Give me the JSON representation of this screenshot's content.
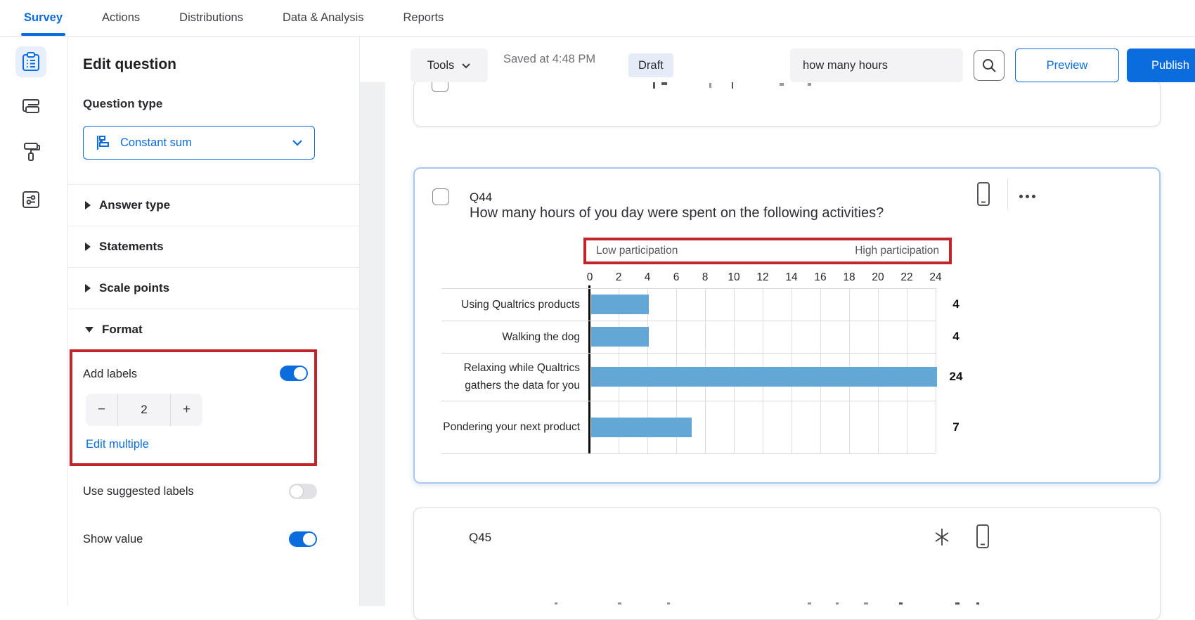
{
  "nav": {
    "tabs": [
      {
        "label": "Survey",
        "active": true
      },
      {
        "label": "Actions",
        "active": false
      },
      {
        "label": "Distributions",
        "active": false
      },
      {
        "label": "Data & Analysis",
        "active": false
      },
      {
        "label": "Reports",
        "active": false
      }
    ]
  },
  "rail": {
    "items": [
      {
        "icon": "survey-builder-icon",
        "active": true
      },
      {
        "icon": "survey-flow-icon",
        "active": false
      },
      {
        "icon": "look-and-feel-icon",
        "active": false
      },
      {
        "icon": "survey-options-icon",
        "active": false
      }
    ]
  },
  "panel": {
    "title": "Edit question",
    "question_type_label": "Question type",
    "question_type_value": "Constant sum",
    "sections": [
      {
        "label": "Answer type",
        "expanded": false
      },
      {
        "label": "Statements",
        "expanded": false
      },
      {
        "label": "Scale points",
        "expanded": false
      },
      {
        "label": "Format",
        "expanded": true
      }
    ],
    "format": {
      "add_labels_label": "Add labels",
      "add_labels_on": true,
      "stepper": {
        "decrease": "−",
        "value": "2",
        "increase": "+"
      },
      "edit_multiple_label": "Edit multiple",
      "use_suggested_labels_label": "Use suggested labels",
      "use_suggested_labels_on": false,
      "show_value_label": "Show value",
      "show_value_on": true
    }
  },
  "toolbar": {
    "tools_label": "Tools",
    "saved_text": "Saved at 4:48 PM",
    "draft_badge": "Draft",
    "search_value": "how many hours",
    "preview_label": "Preview",
    "publish_label": "Publish"
  },
  "cards": {
    "q44": {
      "id": "Q44",
      "title": "How many hours of you day were spent on the following activities?"
    },
    "q45": {
      "id": "Q45"
    }
  },
  "chart_data": {
    "type": "bar",
    "orientation": "horizontal",
    "categories": [
      "Using Qualtrics products",
      "Walking the dog",
      "Relaxing while Qualtrics gathers the data for you",
      "Pondering your next product"
    ],
    "values": [
      4,
      4,
      24,
      7
    ],
    "value_labels": [
      "4",
      "4",
      "24",
      "7"
    ],
    "scale_min_label": "Low participation",
    "scale_max_label": "High participation",
    "x_ticks": [
      0,
      2,
      4,
      6,
      8,
      10,
      12,
      14,
      16,
      18,
      20,
      22,
      24
    ],
    "xlim": [
      0,
      24
    ],
    "grid": true,
    "bar_color": "#63a7d7"
  },
  "colors": {
    "accent_blue": "#0b6cdd",
    "bar_blue": "#63a7d7",
    "annotation_red": "#c2242b",
    "card_highlight_border": "#a9c8ee",
    "draft_badge_bg": "#e6ebf8"
  }
}
